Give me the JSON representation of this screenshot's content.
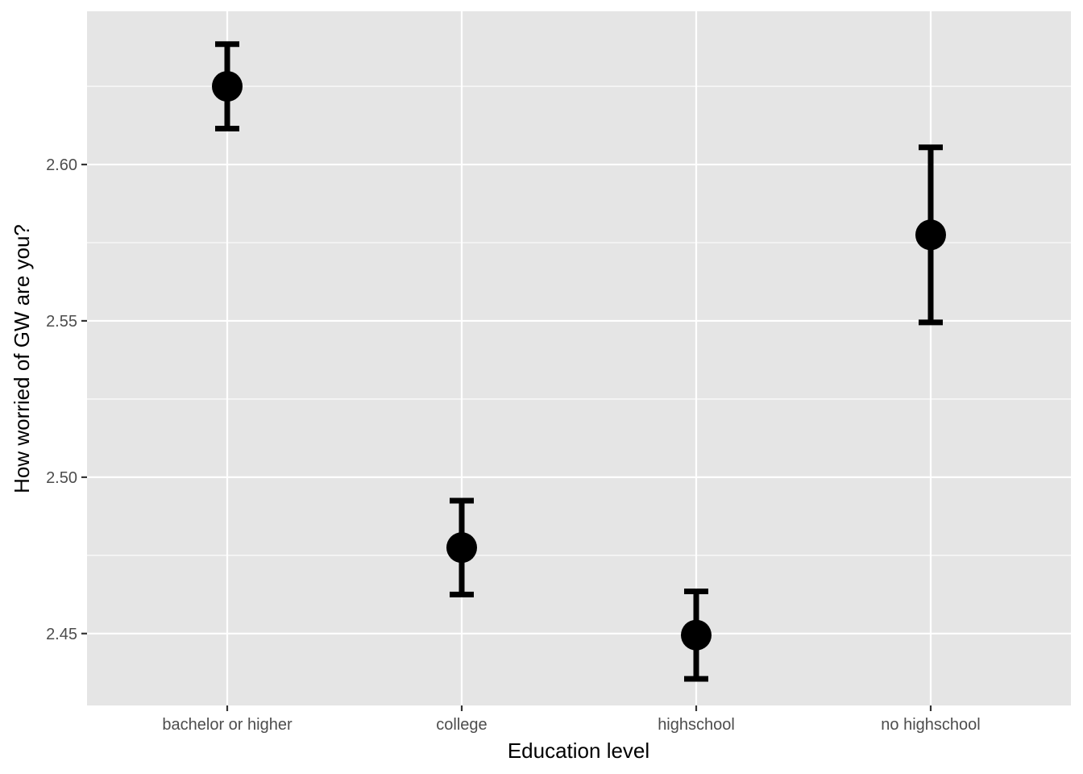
{
  "chart_data": {
    "type": "scatter",
    "title": "",
    "xlabel": "Education level",
    "ylabel": "How worried of GW are you?",
    "categories": [
      "bachelor or higher",
      "college",
      "highschool",
      "no highschool"
    ],
    "series": [
      {
        "values": [
          2.625,
          2.4775,
          2.4495,
          2.5775
        ],
        "error_lower": [
          2.6115,
          2.4625,
          2.4355,
          2.5495
        ],
        "error_upper": [
          2.6385,
          2.4925,
          2.4635,
          2.6055
        ]
      }
    ],
    "ylim": [
      2.427,
      2.649
    ],
    "y_ticks": [
      2.45,
      2.5,
      2.55,
      2.6
    ],
    "y_tick_labels": [
      "2.45",
      "2.50",
      "2.55",
      "2.60"
    ],
    "grid": true,
    "legend": "none",
    "colors": {
      "panel_background": "#e5e5e5",
      "grid_line": "#ffffff",
      "marker": "#000000",
      "tick_text": "#4d4d4d",
      "tick_mark": "#333333"
    }
  }
}
